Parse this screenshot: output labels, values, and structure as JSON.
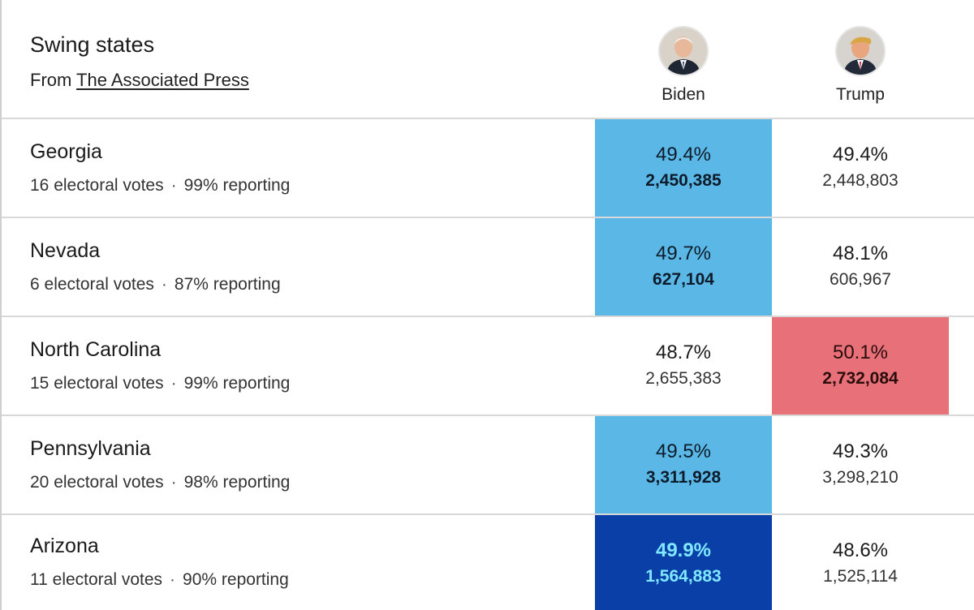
{
  "header": {
    "title": "Swing states",
    "source_prefix": "From",
    "source_link": "The Associated Press"
  },
  "candidates": [
    {
      "name": "Biden",
      "icon": "biden-avatar"
    },
    {
      "name": "Trump",
      "icon": "trump-avatar"
    }
  ],
  "colors": {
    "dem_lead": "#5bb8e6",
    "dem_called": "#0a3fa8",
    "rep_lead": "#e87078"
  },
  "states": [
    {
      "name": "Georgia",
      "electoral_votes": "16 electoral votes",
      "reporting": "99% reporting",
      "biden": {
        "pct": "49.4%",
        "votes": "2,450,385"
      },
      "trump": {
        "pct": "49.4%",
        "votes": "2,448,803"
      },
      "leader": "biden",
      "style": "win-dem-light"
    },
    {
      "name": "Nevada",
      "electoral_votes": "6 electoral votes",
      "reporting": "87% reporting",
      "biden": {
        "pct": "49.7%",
        "votes": "627,104"
      },
      "trump": {
        "pct": "48.1%",
        "votes": "606,967"
      },
      "leader": "biden",
      "style": "win-dem-light"
    },
    {
      "name": "North Carolina",
      "electoral_votes": "15 electoral votes",
      "reporting": "99% reporting",
      "biden": {
        "pct": "48.7%",
        "votes": "2,655,383"
      },
      "trump": {
        "pct": "50.1%",
        "votes": "2,732,084"
      },
      "leader": "trump",
      "style": "win-rep-light"
    },
    {
      "name": "Pennsylvania",
      "electoral_votes": "20 electoral votes",
      "reporting": "98% reporting",
      "biden": {
        "pct": "49.5%",
        "votes": "3,311,928"
      },
      "trump": {
        "pct": "49.3%",
        "votes": "3,298,210"
      },
      "leader": "biden",
      "style": "win-dem-light"
    },
    {
      "name": "Arizona",
      "electoral_votes": "11 electoral votes",
      "reporting": "90% reporting",
      "biden": {
        "pct": "49.9%",
        "votes": "1,564,883"
      },
      "trump": {
        "pct": "48.6%",
        "votes": "1,525,114"
      },
      "leader": "biden",
      "style": "win-dem-dark"
    }
  ]
}
